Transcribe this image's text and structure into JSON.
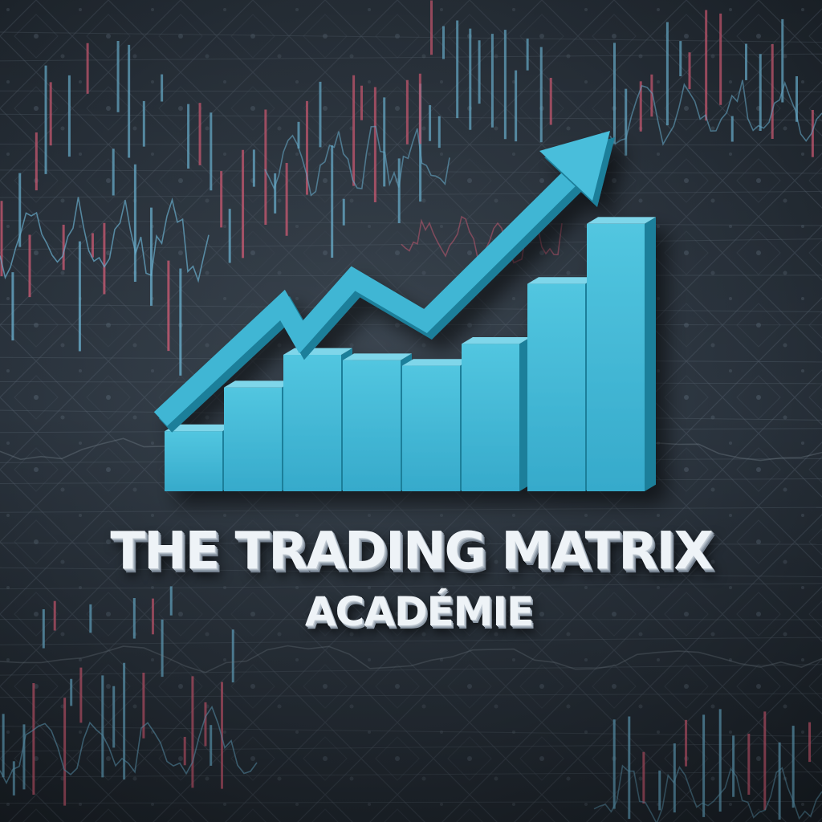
{
  "brand": {
    "title": "THE TRADING MATRIX",
    "subtitle": "ACADÉMIE"
  },
  "colors": {
    "accent": "#3fb6d4",
    "accent_dark": "#1f7f9a",
    "candle_red": "#d9607a",
    "candle_blue": "#6fb8d8",
    "background": "#2a333d"
  },
  "icons": [
    "rising-arrow-icon",
    "bar-chart-icon"
  ],
  "logo_chart": {
    "bar_levels": [
      0.22,
      0.38,
      0.5,
      0.48,
      0.46,
      0.54,
      0.76,
      0.98
    ]
  }
}
